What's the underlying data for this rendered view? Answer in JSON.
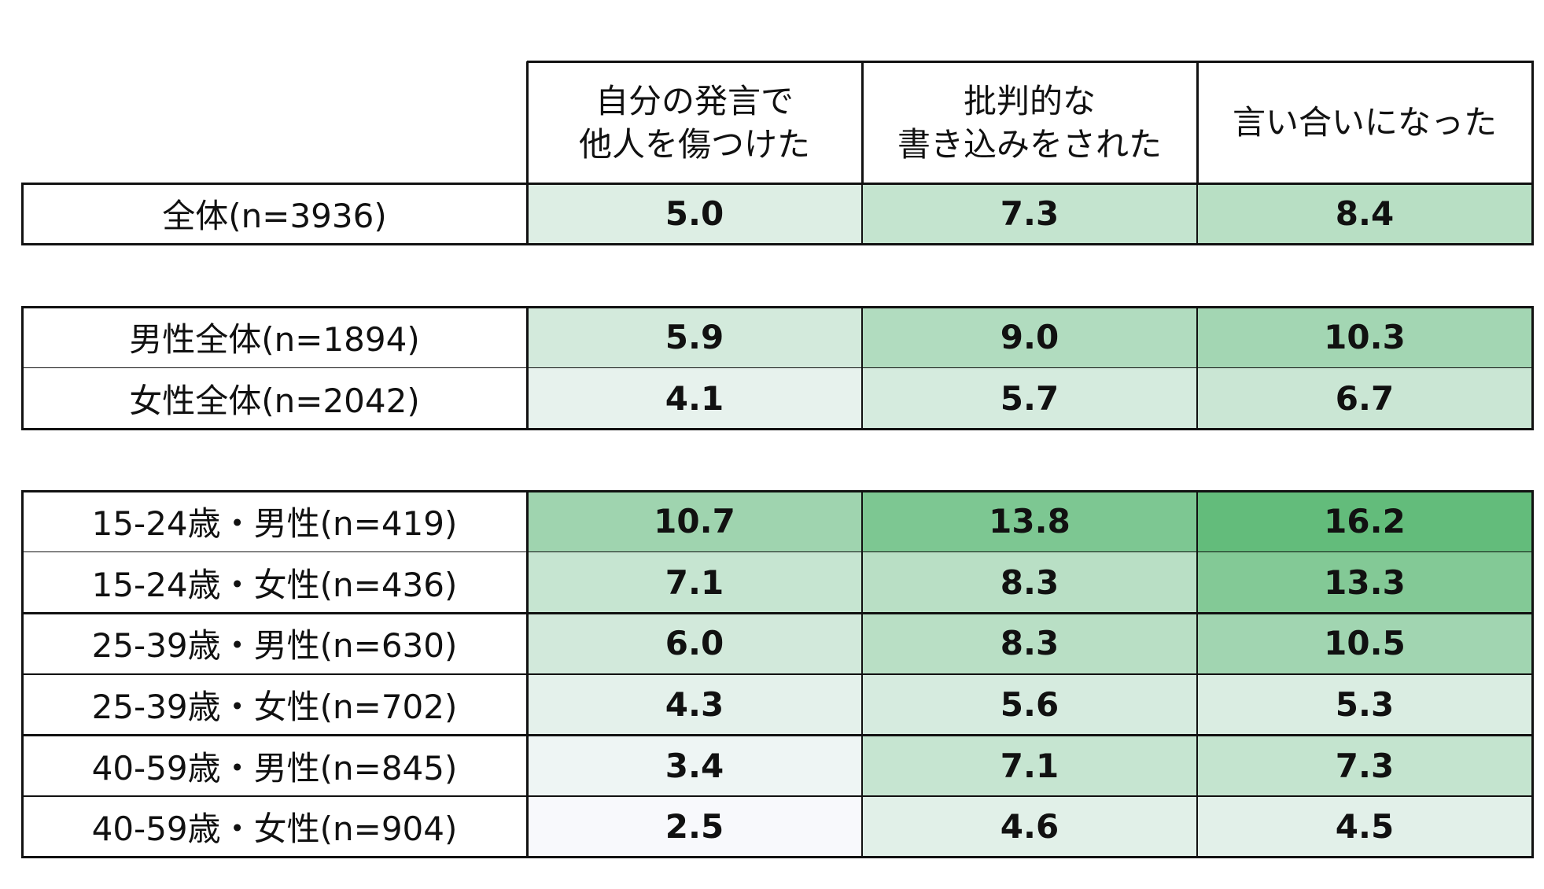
{
  "chart_data": {
    "type": "table",
    "columns": [
      "自分の発言で\n他人を傷つけた",
      "批判的な\n書き込みをされた",
      "言い合いになった"
    ],
    "groups": [
      {
        "rows": [
          {
            "label": "全体(n=3936)",
            "values": [
              5.0,
              7.3,
              8.4
            ]
          }
        ]
      },
      {
        "rows": [
          {
            "label": "男性全体(n=1894)",
            "values": [
              5.9,
              9.0,
              10.3
            ]
          },
          {
            "label": "女性全体(n=2042)",
            "values": [
              4.1,
              5.7,
              6.7
            ]
          }
        ]
      },
      {
        "rows": [
          {
            "label": "15-24歳・男性(n=419)",
            "values": [
              10.7,
              13.8,
              16.2
            ]
          },
          {
            "label": "15-24歳・女性(n=436)",
            "values": [
              7.1,
              8.3,
              13.3
            ]
          },
          {
            "label": "25-39歳・男性(n=630)",
            "values": [
              6.0,
              8.3,
              10.5
            ]
          },
          {
            "label": "25-39歳・女性(n=702)",
            "values": [
              4.3,
              5.6,
              5.3
            ]
          },
          {
            "label": "40-59歳・男性(n=845)",
            "values": [
              3.4,
              7.1,
              7.3
            ]
          },
          {
            "label": "40-59歳・女性(n=904)",
            "values": [
              2.5,
              4.6,
              4.5
            ]
          }
        ]
      }
    ],
    "heatmap": {
      "min": 2.5,
      "max": 16.2,
      "low_color": "#f8f9fc",
      "high_color": "#63bc7b"
    }
  }
}
